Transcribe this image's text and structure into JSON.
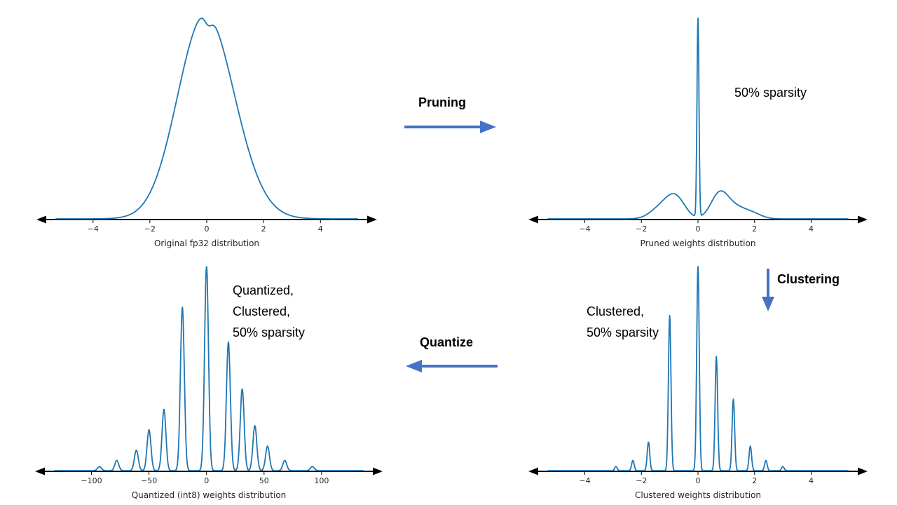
{
  "diagram": {
    "curve_color": "#1f77b4",
    "arrow_color": "#4472C4",
    "arrows": [
      {
        "id": "pruning",
        "label": "Pruning",
        "direction": "right"
      },
      {
        "id": "clustering",
        "label": "Clustering",
        "direction": "down"
      },
      {
        "id": "quantize",
        "label": "Quantize",
        "direction": "left"
      }
    ]
  },
  "chart_data": [
    {
      "id": "original-fp32",
      "type": "line",
      "xlabel": "Original fp32 distribution",
      "xlim": [
        -5.3,
        5.3
      ],
      "xticks": [
        {
          "value": -4,
          "label": "−4"
        },
        {
          "value": -2,
          "label": "−2"
        },
        {
          "value": 0,
          "label": "0"
        },
        {
          "value": 2,
          "label": "2"
        },
        {
          "value": 4,
          "label": "4"
        }
      ],
      "annotation": [],
      "components": [
        {
          "mu": -0.3,
          "sigma": 0.9,
          "w": 0.52
        },
        {
          "mu": 0.3,
          "sigma": 1.0,
          "w": 0.5
        },
        {
          "mu": 0.05,
          "sigma": 0.13,
          "w": -0.05
        }
      ]
    },
    {
      "id": "pruned-weights",
      "type": "line",
      "xlabel": "Pruned weights distribution",
      "xlim": [
        -5.3,
        5.3
      ],
      "xticks": [
        {
          "value": -4,
          "label": "−4"
        },
        {
          "value": -2,
          "label": "−2"
        },
        {
          "value": 0,
          "label": "0"
        },
        {
          "value": 2,
          "label": "2"
        },
        {
          "value": 4,
          "label": "4"
        }
      ],
      "annotation": [
        "50% sparsity"
      ],
      "components": [
        {
          "mu": 0,
          "sigma": 0.035,
          "w": 1.0
        },
        {
          "mu": -0.8,
          "sigma": 0.33,
          "w": 0.11
        },
        {
          "mu": -1.35,
          "sigma": 0.35,
          "w": 0.05
        },
        {
          "mu": 0.75,
          "sigma": 0.3,
          "w": 0.11
        },
        {
          "mu": 1.3,
          "sigma": 0.45,
          "w": 0.06
        },
        {
          "mu": 2.0,
          "sigma": 0.3,
          "w": 0.015
        }
      ]
    },
    {
      "id": "quantized-int8-weights",
      "type": "line",
      "xlabel": "Quantized (int8) weights distribution",
      "xlim": [
        -132,
        136
      ],
      "sigma": 1.7,
      "xticks": [
        {
          "value": -100,
          "label": "−100"
        },
        {
          "value": -50,
          "label": "−50"
        },
        {
          "value": 0,
          "label": "0"
        },
        {
          "value": 50,
          "label": "50"
        },
        {
          "value": 100,
          "label": "100"
        }
      ],
      "annotation": [
        "Quantized,",
        "Clustered,",
        "50% sparsity"
      ],
      "components": [
        {
          "mu": -93,
          "w": 0.02
        },
        {
          "mu": -78,
          "w": 0.05
        },
        {
          "mu": -61,
          "w": 0.1
        },
        {
          "mu": -50,
          "w": 0.2
        },
        {
          "mu": -37,
          "w": 0.3
        },
        {
          "mu": -21,
          "w": 0.8
        },
        {
          "mu": 0,
          "w": 1.0
        },
        {
          "mu": 19,
          "w": 0.63
        },
        {
          "mu": 31,
          "w": 0.4
        },
        {
          "mu": 42,
          "w": 0.22
        },
        {
          "mu": 53,
          "w": 0.12
        },
        {
          "mu": 68,
          "w": 0.05
        },
        {
          "mu": 92,
          "w": 0.02
        }
      ]
    },
    {
      "id": "clustered-weights",
      "type": "line",
      "xlabel": "Clustered weights distribution",
      "xlim": [
        -5.3,
        5.3
      ],
      "sigma": 0.045,
      "xticks": [
        {
          "value": -4,
          "label": "−4"
        },
        {
          "value": -2,
          "label": "−2"
        },
        {
          "value": 0,
          "label": "0"
        },
        {
          "value": 2,
          "label": "2"
        },
        {
          "value": 4,
          "label": "4"
        }
      ],
      "annotation": [
        "Clustered,",
        "50% sparsity"
      ],
      "components": [
        {
          "mu": -2.9,
          "w": 0.02
        },
        {
          "mu": -2.3,
          "w": 0.05
        },
        {
          "mu": -1.75,
          "w": 0.14
        },
        {
          "mu": -1.0,
          "w": 0.76
        },
        {
          "mu": 0,
          "w": 1.0
        },
        {
          "mu": 0.65,
          "w": 0.56
        },
        {
          "mu": 1.25,
          "w": 0.35
        },
        {
          "mu": 1.85,
          "w": 0.12
        },
        {
          "mu": 2.4,
          "w": 0.05
        },
        {
          "mu": 3.0,
          "w": 0.02
        }
      ]
    }
  ]
}
